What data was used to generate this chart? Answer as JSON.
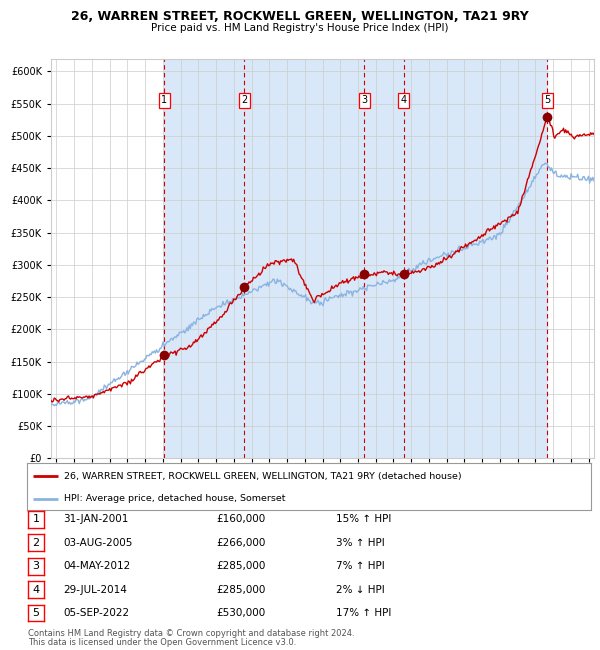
{
  "title": "26, WARREN STREET, ROCKWELL GREEN, WELLINGTON, TA21 9RY",
  "subtitle": "Price paid vs. HM Land Registry's House Price Index (HPI)",
  "legend_line1": "26, WARREN STREET, ROCKWELL GREEN, WELLINGTON, TA21 9RY (detached house)",
  "legend_line2": "HPI: Average price, detached house, Somerset",
  "footer1": "Contains HM Land Registry data © Crown copyright and database right 2024.",
  "footer2": "This data is licensed under the Open Government Licence v3.0.",
  "sales": [
    {
      "num": 1,
      "date_label": "31-JAN-2001",
      "price_label": "£160,000",
      "hpi_label": "15% ↑ HPI",
      "year": 2001.08,
      "price": 160000
    },
    {
      "num": 2,
      "date_label": "03-AUG-2005",
      "price_label": "£266,000",
      "hpi_label": "3% ↑ HPI",
      "year": 2005.59,
      "price": 266000
    },
    {
      "num": 3,
      "date_label": "04-MAY-2012",
      "price_label": "£285,000",
      "hpi_label": "7% ↑ HPI",
      "year": 2012.34,
      "price": 285000
    },
    {
      "num": 4,
      "date_label": "29-JUL-2014",
      "price_label": "£285,000",
      "hpi_label": "2% ↓ HPI",
      "year": 2014.57,
      "price": 285000
    },
    {
      "num": 5,
      "date_label": "05-SEP-2022",
      "price_label": "£530,000",
      "hpi_label": "17% ↑ HPI",
      "year": 2022.67,
      "price": 530000
    }
  ],
  "ylim": [
    0,
    620000
  ],
  "xlim_start": 1994.7,
  "xlim_end": 2025.3,
  "plot_bg": "#ffffff",
  "hpi_color": "#8ab4e0",
  "price_color": "#cc0000",
  "grid_color": "#cccccc",
  "dashed_color": "#cc0000",
  "marker_color": "#880000",
  "shade_color": "#d8e8f8"
}
